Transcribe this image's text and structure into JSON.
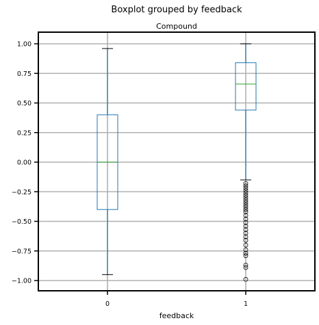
{
  "chart_data": {
    "type": "boxplot",
    "title": "Boxplot grouped by feedback",
    "subtitle": "Compound",
    "xlabel": "feedback",
    "ylabel": "",
    "categories": [
      "0",
      "1"
    ],
    "ylim": [
      -1.09,
      1.09
    ],
    "yticks": [
      1.0,
      0.75,
      0.5,
      0.25,
      0.0,
      -0.25,
      -0.5,
      -0.75,
      -1.0
    ],
    "ytick_labels": [
      "1.00",
      "0.75",
      "0.50",
      "0.25",
      "0.00",
      "−0.25",
      "−0.50",
      "−0.75",
      "−1.00"
    ],
    "grid": true,
    "boxes": [
      {
        "category": "0",
        "whisker_low": -0.95,
        "q1": -0.4,
        "median": 0.0,
        "q3": 0.4,
        "whisker_high": 0.96,
        "outliers": []
      },
      {
        "category": "1",
        "whisker_low": -0.15,
        "q1": 0.44,
        "median": 0.66,
        "q3": 0.84,
        "whisker_high": 1.0,
        "outliers": [
          -0.18,
          -0.2,
          -0.22,
          -0.24,
          -0.26,
          -0.28,
          -0.3,
          -0.32,
          -0.34,
          -0.36,
          -0.38,
          -0.4,
          -0.42,
          -0.45,
          -0.48,
          -0.51,
          -0.54,
          -0.57,
          -0.6,
          -0.63,
          -0.66,
          -0.7,
          -0.74,
          -0.77,
          -0.79,
          -0.87,
          -0.89,
          -0.99
        ]
      }
    ],
    "colors": {
      "box": "#1f77b4",
      "whisker": "#1f77b4",
      "median": "#2ca02c",
      "cap": "#000000",
      "grid": "#b0b0b0",
      "outlier": "#000000"
    }
  }
}
